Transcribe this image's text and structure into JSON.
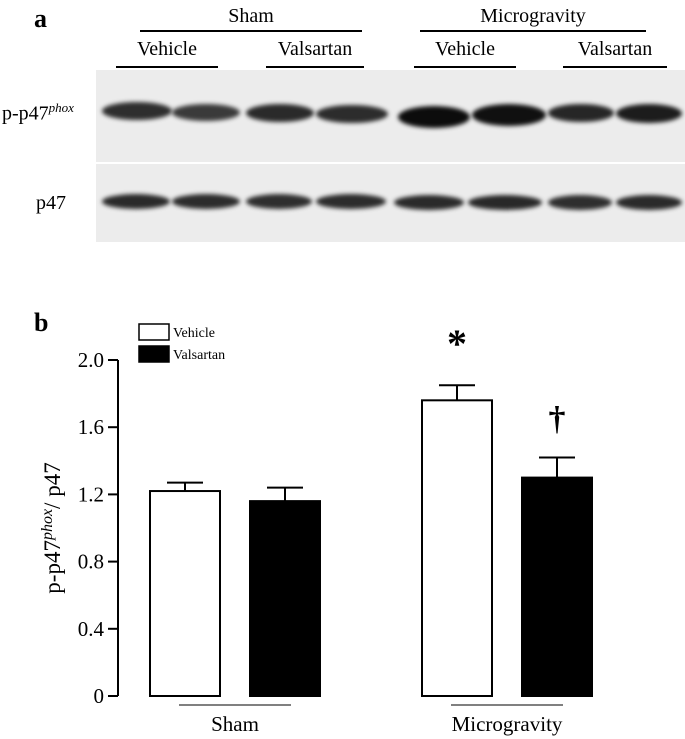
{
  "panel_a": {
    "label": "a",
    "groups": [
      "Sham",
      "Microgravity"
    ],
    "lanes": [
      "Vehicle",
      "Valsartan",
      "Vehicle",
      "Valsartan"
    ],
    "rows": [
      {
        "main": "p-p47",
        "sup": "phox"
      },
      {
        "main": "p47",
        "sup": ""
      }
    ]
  },
  "panel_b": {
    "label": "b"
  },
  "chart_data": {
    "type": "bar",
    "title": "",
    "xlabel": "",
    "ylabel": {
      "main": "p-p47",
      "sup": "phox",
      "suffix": "/ p47"
    },
    "categories": [
      "Sham",
      "Microgravity"
    ],
    "series": [
      {
        "name": "Vehicle",
        "color": "#ffffff",
        "values": [
          1.22,
          1.76
        ],
        "errors": [
          0.05,
          0.09
        ]
      },
      {
        "name": "Valsartan",
        "color": "#000000",
        "values": [
          1.16,
          1.3
        ],
        "errors": [
          0.08,
          0.12
        ]
      }
    ],
    "ylim": [
      0,
      2.0
    ],
    "yticks": [
      "0",
      "0.4",
      "0.8",
      "1.2",
      "1.6",
      "2.0"
    ],
    "annotations": [
      {
        "text": "*",
        "category": 1,
        "series": 0
      },
      {
        "text": "†",
        "category": 1,
        "series": 1
      }
    ],
    "legend": "top-left",
    "grid": false
  }
}
